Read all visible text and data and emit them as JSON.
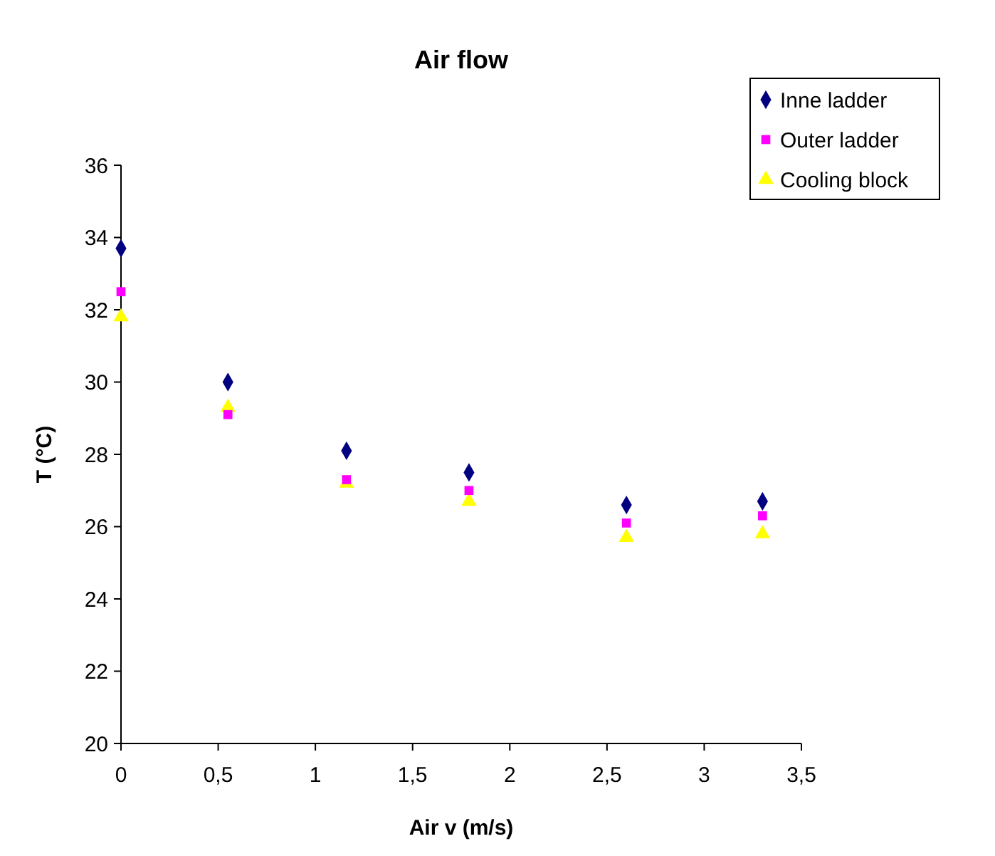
{
  "chart_data": {
    "type": "scatter",
    "title": "Air flow",
    "xlabel": "Air v (m/s)",
    "ylabel": "T (°C)",
    "x": [
      0,
      0.55,
      1.16,
      1.79,
      2.6,
      3.3
    ],
    "series": [
      {
        "name": "Inne ladder",
        "color": "#000080",
        "marker": "diamond",
        "values": [
          33.7,
          30.0,
          28.1,
          27.5,
          26.6,
          26.7
        ]
      },
      {
        "name": "Outer ladder",
        "color": "#ff00ff",
        "marker": "square",
        "values": [
          32.5,
          29.1,
          27.3,
          27.0,
          26.1,
          26.3
        ]
      },
      {
        "name": "Cooling block",
        "color": "#ffff00",
        "marker": "triangle",
        "values": [
          31.8,
          29.3,
          27.2,
          26.7,
          25.7,
          25.8
        ]
      }
    ],
    "xlim": [
      0,
      3.5
    ],
    "xticks": [
      0,
      {
        "value": 0.5,
        "label": "0,5"
      },
      1,
      {
        "value": 1.5,
        "label": "1,5"
      },
      2,
      {
        "value": 2.5,
        "label": "2,5"
      },
      3,
      {
        "value": 3.5,
        "label": "3,5"
      }
    ],
    "ylim": [
      20,
      36
    ],
    "yticks": [
      20,
      22,
      24,
      26,
      28,
      30,
      32,
      34,
      36
    ],
    "grid": false,
    "legend": "top right"
  }
}
